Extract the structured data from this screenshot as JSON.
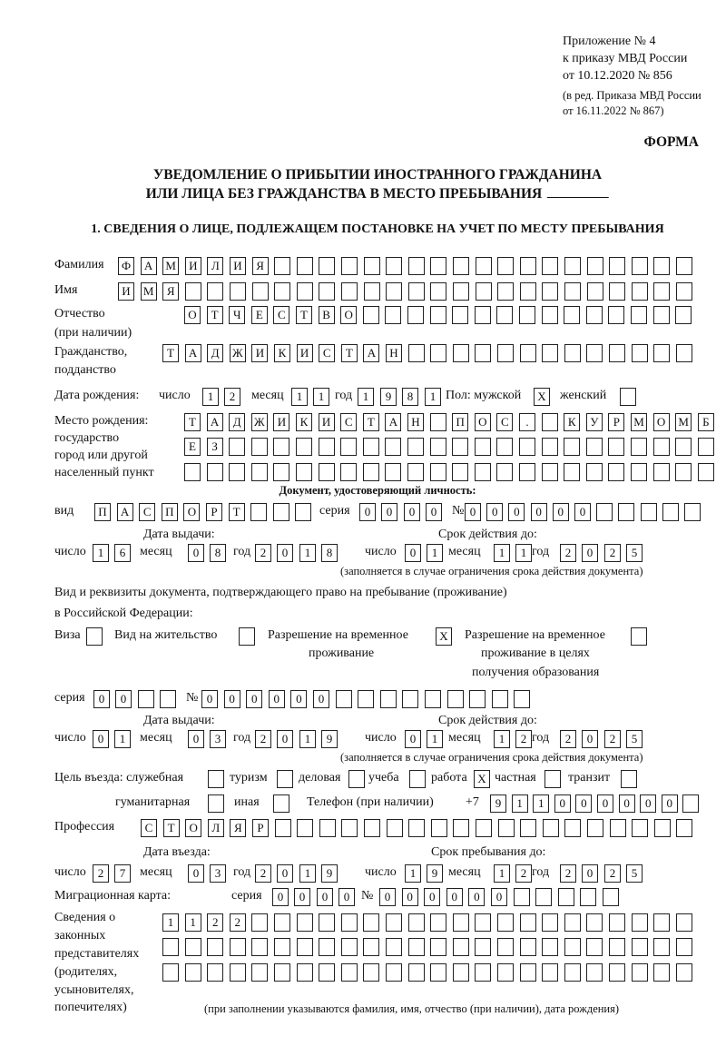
{
  "header": {
    "line1": "Приложение № 4",
    "line2": "к приказу МВД России",
    "line3": "от 10.12.2020 № 856",
    "line4": "(в ред. Приказа МВД России",
    "line5": "от 16.11.2022 № 867)",
    "forma": "ФОРМА"
  },
  "title": {
    "line1": "УВЕДОМЛЕНИЕ О ПРИБЫТИИ ИНОСТРАННОГО ГРАЖДАНИНА",
    "line2": "ИЛИ ЛИЦА БЕЗ ГРАЖДАНСТВА В МЕСТО ПРЕБЫВАНИЯ"
  },
  "section1": "1. СВЕДЕНИЯ О ЛИЦЕ, ПОДЛЕЖАЩЕМ ПОСТАНОВКЕ НА УЧЕТ ПО МЕСТУ ПРЕБЫВАНИЯ",
  "labels": {
    "surname": "Фамилия",
    "name": "Имя",
    "patronymic1": "Отчество",
    "patronymic2": "(при наличии)",
    "citizenship1": "Гражданство,",
    "citizenship2": "подданство",
    "birthdate": "Дата рождения:",
    "bd_day": "число",
    "bd_month": "месяц",
    "bd_year": "год",
    "sex_male": "Пол: мужской",
    "sex_female": "женский",
    "birthplace1": "Место рождения:",
    "birthplace2": "государство",
    "birthplace3": "город или другой",
    "birthplace4": "населенный пункт",
    "id_doc": "Документ, удостоверяющий личность:",
    "doc_kind": "вид",
    "doc_series": "серия",
    "doc_number": "№",
    "doc_issue": "Дата выдачи:",
    "doc_valid": "Срок действия до:",
    "d1_day": "число",
    "d1_month": "месяц",
    "d1_year": "год",
    "d1v_day": "число",
    "d1v_month": "месяц",
    "d1v_year": "год",
    "doc_note": "(заполняется в случае ограничения срока действия документа)",
    "permit_text1": "Вид и реквизиты документа, подтверждающего право на пребывание (проживание)",
    "permit_text2": "в Российской Федерации:",
    "visa": "Виза",
    "residence": "Вид на жительство",
    "rvp1": "Разрешение на временное",
    "rvp2": "проживание",
    "rvpedu1": "Разрешение на временное",
    "rvpedu2": "проживание в целях",
    "rvpedu3": "получения образования",
    "permit_series": "серия",
    "permit_number": "№",
    "permit_issue": "Дата выдачи:",
    "permit_valid": "Срок действия до:",
    "d2_day": "число",
    "d2_month": "месяц",
    "d2_year": "год",
    "d2v_day": "число",
    "d2v_month": "месяц",
    "d2v_year": "год",
    "permit_note": "(заполняется в случае ограничения срока действия документа)",
    "purpose": "Цель въезда: служебная",
    "tourism": "туризм",
    "business": "деловая",
    "study": "учеба",
    "work": "работа",
    "private": "частная",
    "transit": "транзит",
    "humanitarian": "гуманитарная",
    "other": "иная",
    "phone": "Телефон (при наличии)",
    "phone_prefix": "+7",
    "profession": "Профессия",
    "entry_date": "Дата въезда:",
    "stay_until": "Срок пребывания до:",
    "d3_day": "число",
    "d3_month": "месяц",
    "d3_year": "год",
    "d3v_day": "число",
    "d3v_month": "месяц",
    "d3v_year": "год",
    "migration_card": "Миграционная карта:",
    "mc_series": "серия",
    "mc_number": "№",
    "reps1": "Сведения о",
    "reps2": "законных",
    "reps3": "представителях",
    "reps4": "(родителях,",
    "reps5": "усыновителях,",
    "reps6": "попечителях)",
    "reps_note": "(при заполнении указываются фамилия, имя, отчество (при наличии), дата рождения)"
  },
  "fields": {
    "surname": [
      "Ф",
      "А",
      "М",
      "И",
      "Л",
      "И",
      "Я",
      "",
      "",
      "",
      "",
      "",
      "",
      "",
      "",
      "",
      "",
      "",
      "",
      "",
      "",
      "",
      "",
      "",
      "",
      ""
    ],
    "name": [
      "И",
      "М",
      "Я",
      "",
      "",
      "",
      "",
      "",
      "",
      "",
      "",
      "",
      "",
      "",
      "",
      "",
      "",
      "",
      "",
      "",
      "",
      "",
      "",
      "",
      "",
      ""
    ],
    "patronymic": [
      "О",
      "Т",
      "Ч",
      "Е",
      "С",
      "Т",
      "В",
      "О",
      "",
      "",
      "",
      "",
      "",
      "",
      "",
      "",
      "",
      "",
      "",
      "",
      "",
      "",
      ""
    ],
    "citizenship": [
      "Т",
      "А",
      "Д",
      "Ж",
      "И",
      "К",
      "И",
      "С",
      "Т",
      "А",
      "Н",
      "",
      "",
      "",
      "",
      "",
      "",
      "",
      "",
      "",
      "",
      "",
      "",
      ""
    ],
    "bd_day": [
      "1",
      "2"
    ],
    "bd_month": [
      "1",
      "1"
    ],
    "bd_year": [
      "1",
      "9",
      "8",
      "1"
    ],
    "sex_male": [
      "X"
    ],
    "sex_female": [
      ""
    ],
    "birthplace_row1": [
      "Т",
      "А",
      "Д",
      "Ж",
      "И",
      "К",
      "И",
      "С",
      "Т",
      "А",
      "Н",
      "",
      "П",
      "О",
      "С",
      ".",
      "",
      "К",
      "У",
      "Р",
      "М",
      "О",
      "М",
      "Б"
    ],
    "birthplace_row2": [
      "Е",
      "З",
      "",
      "",
      "",
      "",
      "",
      "",
      "",
      "",
      "",
      "",
      "",
      "",
      "",
      "",
      "",
      "",
      "",
      "",
      "",
      "",
      "",
      ""
    ],
    "birthplace_row3": [
      "",
      "",
      "",
      "",
      "",
      "",
      "",
      "",
      "",
      "",
      "",
      "",
      "",
      "",
      "",
      "",
      "",
      "",
      "",
      "",
      "",
      "",
      "",
      ""
    ],
    "doc_kind": [
      "П",
      "А",
      "С",
      "П",
      "О",
      "Р",
      "Т",
      "",
      "",
      ""
    ],
    "doc_series": [
      "0",
      "0",
      "0",
      "0"
    ],
    "doc_number": [
      "0",
      "0",
      "0",
      "0",
      "0",
      "0",
      "",
      "",
      "",
      "",
      ""
    ],
    "d1_day": [
      "1",
      "6"
    ],
    "d1_month": [
      "0",
      "8"
    ],
    "d1_year": [
      "2",
      "0",
      "1",
      "8"
    ],
    "d1v_day": [
      "0",
      "1"
    ],
    "d1v_month": [
      "1",
      "1"
    ],
    "d1v_year": [
      "2",
      "0",
      "2",
      "5"
    ],
    "visa": [
      ""
    ],
    "residence": [
      ""
    ],
    "rvp": [
      "X"
    ],
    "rvpedu": [
      ""
    ],
    "permit_series": [
      "0",
      "0",
      "",
      ""
    ],
    "permit_number": [
      "0",
      "0",
      "0",
      "0",
      "0",
      "0",
      "",
      "",
      "",
      "",
      "",
      "",
      "",
      "",
      ""
    ],
    "d2_day": [
      "0",
      "1"
    ],
    "d2_month": [
      "0",
      "3"
    ],
    "d2_year": [
      "2",
      "0",
      "1",
      "9"
    ],
    "d2v_day": [
      "0",
      "1"
    ],
    "d2v_month": [
      "1",
      "2"
    ],
    "d2v_year": [
      "2",
      "0",
      "2",
      "5"
    ],
    "purpose_service": [
      ""
    ],
    "tourism": [
      ""
    ],
    "business": [
      ""
    ],
    "study": [
      ""
    ],
    "work": [
      "X"
    ],
    "private": [
      ""
    ],
    "transit": [
      ""
    ],
    "humanitarian": [
      ""
    ],
    "other": [
      ""
    ],
    "phone": [
      "9",
      "1",
      "1",
      "0",
      "0",
      "0",
      "0",
      "0",
      "0",
      ""
    ],
    "profession": [
      "С",
      "Т",
      "О",
      "Л",
      "Я",
      "Р",
      "",
      "",
      "",
      "",
      "",
      "",
      "",
      "",
      "",
      "",
      "",
      "",
      "",
      "",
      "",
      "",
      "",
      "",
      ""
    ],
    "d3_day": [
      "2",
      "7"
    ],
    "d3_month": [
      "0",
      "3"
    ],
    "d3_year": [
      "2",
      "0",
      "1",
      "9"
    ],
    "d3v_day": [
      "1",
      "9"
    ],
    "d3v_month": [
      "1",
      "2"
    ],
    "d3v_year": [
      "2",
      "0",
      "2",
      "5"
    ],
    "mc_series": [
      "0",
      "0",
      "0",
      "0"
    ],
    "mc_number": [
      "0",
      "0",
      "0",
      "0",
      "0",
      "0",
      "",
      "",
      "",
      "",
      ""
    ],
    "reps_row1": [
      "1",
      "1",
      "2",
      "2",
      "",
      "",
      "",
      "",
      "",
      "",
      "",
      "",
      "",
      "",
      "",
      "",
      "",
      "",
      "",
      "",
      "",
      "",
      "",
      ""
    ],
    "reps_row2": [
      "",
      "",
      "",
      "",
      "",
      "",
      "",
      "",
      "",
      "",
      "",
      "",
      "",
      "",
      "",
      "",
      "",
      "",
      "",
      "",
      "",
      "",
      "",
      ""
    ],
    "reps_row3": [
      "",
      "",
      "",
      "",
      "",
      "",
      "",
      "",
      "",
      "",
      "",
      "",
      "",
      "",
      "",
      "",
      "",
      "",
      "",
      "",
      "",
      "",
      "",
      ""
    ]
  }
}
